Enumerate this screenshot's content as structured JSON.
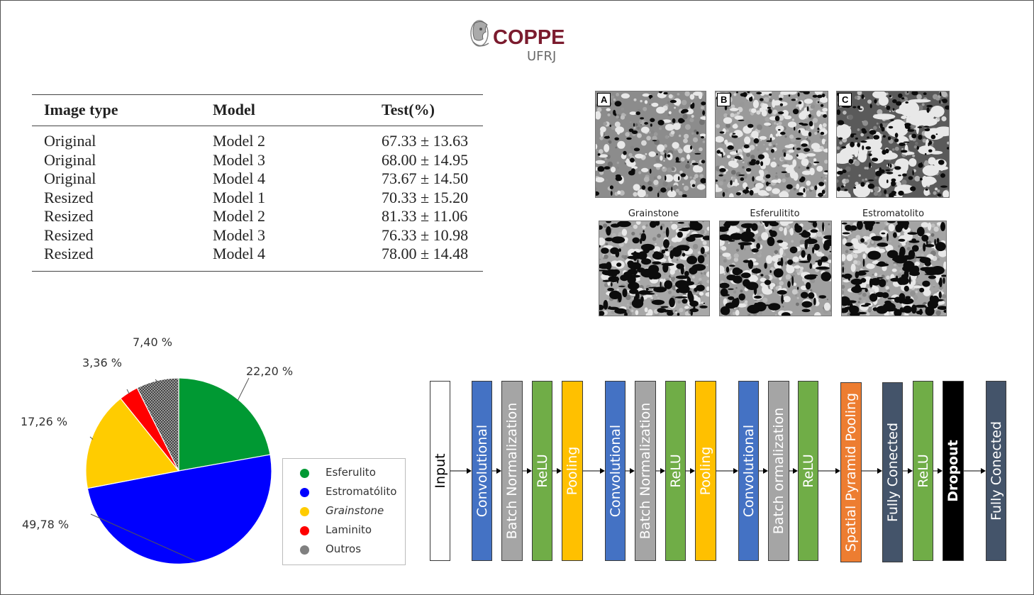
{
  "logo": {
    "name": "COPPE",
    "sub": "UFRJ"
  },
  "table": {
    "headers": [
      "Image type",
      "Model",
      "Test(%)"
    ],
    "rows": [
      [
        "Original",
        "Model 2",
        "67.33 ± 13.63"
      ],
      [
        "Original",
        "Model 3",
        "68.00 ± 14.95"
      ],
      [
        "Original",
        "Model 4",
        "73.67 ± 14.50"
      ],
      [
        "Resized",
        "Model 1",
        "70.33 ± 15.20"
      ],
      [
        "Resized",
        "Model 2",
        "81.33 ± 11.06"
      ],
      [
        "Resized",
        "Model 3",
        "76.33 ± 10.98"
      ],
      [
        "Resized",
        "Model 4",
        "78.00 ± 14.48"
      ]
    ]
  },
  "images": {
    "top_labels": [
      "A",
      "B",
      "C"
    ],
    "bottom_captions": [
      "Grainstone",
      "Esferulitito",
      "Estromatolito"
    ]
  },
  "chart_data": {
    "type": "pie",
    "slices": [
      {
        "label": "Esferulito",
        "value": 22.2,
        "display": "22,20 %",
        "color": "#009933"
      },
      {
        "label": "Estromatólito",
        "value": 49.78,
        "display": "49,78 %",
        "color": "#0000ff"
      },
      {
        "label": "Grainstone",
        "value": 17.26,
        "display": "17,26 %",
        "color": "#ffcc00"
      },
      {
        "label": "Laminito",
        "value": 3.36,
        "display": "3,36 %",
        "color": "#ff0000"
      },
      {
        "label": "Outros",
        "value": 7.4,
        "display": "7,40 %",
        "color": "#808080"
      }
    ],
    "legend": [
      "Esferulito",
      "Estromatólito",
      "Grainstone",
      "Laminito",
      "Outros"
    ],
    "legend_placement": "right"
  },
  "architecture": {
    "blocks": [
      {
        "label": "Input",
        "color": "#ffffff",
        "text": "#000000"
      },
      {
        "label": "Convolutional",
        "color": "#4472c4",
        "text": "#ffffff"
      },
      {
        "label": "Batch Normalization",
        "color": "#a5a5a5",
        "text": "#ffffff"
      },
      {
        "label": "ReLU",
        "color": "#70ad47",
        "text": "#ffffff"
      },
      {
        "label": "Pooling",
        "color": "#ffc000",
        "text": "#ffffff"
      },
      {
        "label": "Convolutional",
        "color": "#4472c4",
        "text": "#ffffff"
      },
      {
        "label": "Batch Normalization",
        "color": "#a5a5a5",
        "text": "#ffffff"
      },
      {
        "label": "ReLU",
        "color": "#70ad47",
        "text": "#ffffff"
      },
      {
        "label": "Pooling",
        "color": "#ffc000",
        "text": "#ffffff"
      },
      {
        "label": "Convolutional",
        "color": "#4472c4",
        "text": "#ffffff"
      },
      {
        "label": "Batch ormalization",
        "color": "#a5a5a5",
        "text": "#ffffff"
      },
      {
        "label": "ReLU",
        "color": "#70ad47",
        "text": "#ffffff"
      },
      {
        "label": "Spatial Pyramid Pooling",
        "color": "#ed7d31",
        "text": "#ffffff"
      },
      {
        "label": "Fully Conected",
        "color": "#44546a",
        "text": "#ffffff"
      },
      {
        "label": "ReLU",
        "color": "#70ad47",
        "text": "#ffffff"
      },
      {
        "label": "Dropout",
        "color": "#000000",
        "text": "#ffffff"
      },
      {
        "label": "Fully Conected",
        "color": "#44546a",
        "text": "#ffffff"
      }
    ]
  }
}
